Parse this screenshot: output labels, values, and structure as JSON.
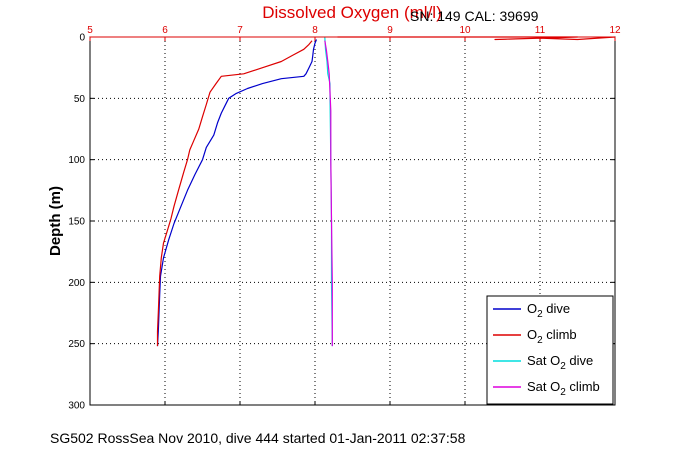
{
  "chart_data": {
    "type": "line",
    "title": "Dissolved Oxygen (ml/l)",
    "serial_info": "SN: 149  CAL: 39699",
    "xlabel": "",
    "ylabel": "Depth (m)",
    "xlim": [
      5,
      12
    ],
    "ylim": [
      0,
      300
    ],
    "y_inverted": true,
    "x_axis_position": "top",
    "grid": true,
    "x_ticks": [
      "5",
      "6",
      "7",
      "8",
      "9",
      "10",
      "11",
      "12"
    ],
    "y_ticks": [
      "0",
      "50",
      "100",
      "150",
      "200",
      "250",
      "300"
    ],
    "legend": {
      "placement": "bottom-right"
    },
    "series": [
      {
        "name": "O2 dive",
        "legend_main": "O",
        "legend_sub": "2",
        "legend_rest": " dive",
        "color": "#0000cc",
        "points": [
          [
            8.02,
            2
          ],
          [
            8.0,
            5
          ],
          [
            7.98,
            10
          ],
          [
            7.97,
            15
          ],
          [
            7.96,
            20
          ],
          [
            7.92,
            25
          ],
          [
            7.88,
            30
          ],
          [
            7.85,
            32
          ],
          [
            7.55,
            34
          ],
          [
            7.3,
            38
          ],
          [
            7.1,
            42
          ],
          [
            6.95,
            46
          ],
          [
            6.85,
            50
          ],
          [
            6.8,
            56
          ],
          [
            6.75,
            62
          ],
          [
            6.7,
            70
          ],
          [
            6.65,
            80
          ],
          [
            6.55,
            90
          ],
          [
            6.5,
            100
          ],
          [
            6.4,
            112
          ],
          [
            6.3,
            125
          ],
          [
            6.2,
            140
          ],
          [
            6.12,
            152
          ],
          [
            6.05,
            165
          ],
          [
            5.98,
            180
          ],
          [
            5.94,
            195
          ],
          [
            5.93,
            210
          ],
          [
            5.92,
            225
          ],
          [
            5.91,
            240
          ],
          [
            5.9,
            252
          ]
        ]
      },
      {
        "name": "O2 climb",
        "legend_main": "O",
        "legend_sub": "2",
        "legend_rest": " climb",
        "color": "#dd0000",
        "points": [
          [
            5.9,
            252
          ],
          [
            5.9,
            240
          ],
          [
            5.91,
            225
          ],
          [
            5.92,
            210
          ],
          [
            5.93,
            195
          ],
          [
            5.95,
            180
          ],
          [
            5.98,
            168
          ],
          [
            6.03,
            158
          ],
          [
            6.08,
            148
          ],
          [
            6.12,
            138
          ],
          [
            6.18,
            125
          ],
          [
            6.25,
            110
          ],
          [
            6.3,
            100
          ],
          [
            6.33,
            92
          ],
          [
            6.38,
            85
          ],
          [
            6.45,
            75
          ],
          [
            6.5,
            65
          ],
          [
            6.55,
            55
          ],
          [
            6.6,
            45
          ],
          [
            6.68,
            38
          ],
          [
            6.75,
            32
          ],
          [
            7.05,
            30
          ],
          [
            7.3,
            25
          ],
          [
            7.55,
            20
          ],
          [
            7.7,
            15
          ],
          [
            7.85,
            10
          ],
          [
            7.92,
            6
          ],
          [
            7.96,
            3
          ]
        ]
      },
      {
        "name": "Sat O2 dive",
        "legend_main": "Sat O",
        "legend_sub": "2",
        "legend_rest": " dive",
        "color": "#00dddd",
        "points": [
          [
            8.13,
            0
          ],
          [
            8.14,
            10
          ],
          [
            8.16,
            20
          ],
          [
            8.17,
            30
          ],
          [
            8.2,
            38
          ],
          [
            8.2,
            50
          ],
          [
            8.21,
            100
          ],
          [
            8.22,
            150
          ],
          [
            8.22,
            200
          ],
          [
            8.23,
            252
          ]
        ]
      },
      {
        "name": "Sat O2 climb",
        "legend_main": "Sat O",
        "legend_sub": "2",
        "legend_rest": " climb",
        "color": "#dd00dd",
        "points": [
          [
            8.23,
            252
          ],
          [
            8.23,
            200
          ],
          [
            8.22,
            150
          ],
          [
            8.21,
            100
          ],
          [
            8.21,
            60
          ],
          [
            8.2,
            45
          ],
          [
            8.19,
            30
          ],
          [
            8.17,
            20
          ],
          [
            8.15,
            10
          ],
          [
            8.13,
            3
          ]
        ]
      },
      {
        "name": "",
        "color": "#dd0000",
        "points": [
          [
            8.3,
            0
          ],
          [
            11.5,
            0
          ],
          [
            10.4,
            2
          ],
          [
            11.0,
            1
          ],
          [
            11.5,
            2
          ],
          [
            12.0,
            0
          ]
        ]
      }
    ]
  },
  "caption": "SG502 RossSea Nov 2010, dive 444 started 01-Jan-2011 02:37:58"
}
